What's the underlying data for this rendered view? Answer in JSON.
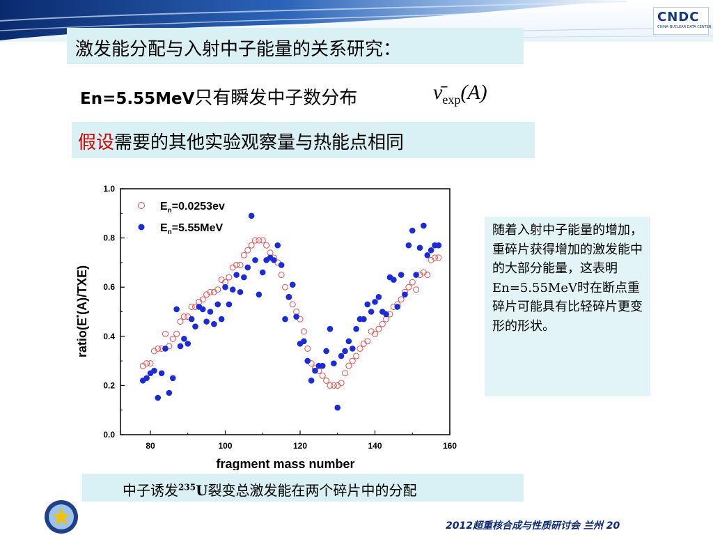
{
  "header": {
    "logo_text": "CNDC",
    "logo_sub": "CHINA NUCLEAR DATA CENTER",
    "title": "激发能分配与入射中子能量的关系研究："
  },
  "subtitle": {
    "en_part": "En=5.55MeV",
    "zh_part": "只有瞬发中子数分布",
    "formula_main": "ν̄",
    "formula_sub": "exp",
    "formula_arg": "(A)"
  },
  "assumption": {
    "highlight": "假设",
    "rest": "需要的其他实验观察量与热能点相同"
  },
  "note": {
    "text": "随着入射中子能量的增加，重碎片获得增加的激发能中的大部分能量，这表明En=5.55MeV时在断点重碎片可能具有比轻碎片更变形的形状。"
  },
  "caption": {
    "before": "中子诱发",
    "isotope_mass": "235",
    "isotope_symbol": "U",
    "after": "裂变总激发能在两个碎片中的分配"
  },
  "footer": {
    "text": "2012超重核合成与性质研讨会 兰州 20"
  },
  "chart_data": {
    "type": "scatter",
    "xlabel": "fragment mass number",
    "ylabel": "ratio(E*(A)/TXE)",
    "xlim": [
      72,
      160
    ],
    "ylim": [
      0.0,
      1.0
    ],
    "xticks": [
      "80",
      "100",
      "120",
      "140",
      "160"
    ],
    "yticks": [
      "0.0",
      "0.2",
      "0.4",
      "0.6",
      "0.8",
      "1.0"
    ],
    "legend_position": "top-left",
    "series": [
      {
        "name": "En=0.0253ev",
        "marker": "open-circle",
        "color": "#e05050",
        "points": [
          [
            78,
            0.28
          ],
          [
            79,
            0.29
          ],
          [
            80,
            0.29
          ],
          [
            81,
            0.34
          ],
          [
            82,
            0.35
          ],
          [
            83,
            0.35
          ],
          [
            84,
            0.41
          ],
          [
            85,
            0.36
          ],
          [
            86,
            0.39
          ],
          [
            87,
            0.41
          ],
          [
            88,
            0.46
          ],
          [
            89,
            0.48
          ],
          [
            90,
            0.48
          ],
          [
            91,
            0.52
          ],
          [
            92,
            0.52
          ],
          [
            93,
            0.54
          ],
          [
            94,
            0.55
          ],
          [
            95,
            0.57
          ],
          [
            96,
            0.58
          ],
          [
            97,
            0.58
          ],
          [
            98,
            0.59
          ],
          [
            99,
            0.63
          ],
          [
            100,
            0.62
          ],
          [
            101,
            0.64
          ],
          [
            102,
            0.68
          ],
          [
            103,
            0.69
          ],
          [
            104,
            0.69
          ],
          [
            105,
            0.73
          ],
          [
            106,
            0.75
          ],
          [
            107,
            0.77
          ],
          [
            108,
            0.79
          ],
          [
            109,
            0.79
          ],
          [
            110,
            0.79
          ],
          [
            111,
            0.77
          ],
          [
            112,
            0.74
          ],
          [
            113,
            0.72
          ],
          [
            114,
            0.7
          ],
          [
            115,
            0.65
          ],
          [
            116,
            0.6
          ],
          [
            117,
            0.56
          ],
          [
            118,
            0.53
          ],
          [
            119,
            0.5
          ],
          [
            120,
            0.47
          ],
          [
            121,
            0.42
          ],
          [
            122,
            0.35
          ],
          [
            123,
            0.29
          ],
          [
            124,
            0.27
          ],
          [
            125,
            0.26
          ],
          [
            126,
            0.24
          ],
          [
            127,
            0.22
          ],
          [
            128,
            0.2
          ],
          [
            129,
            0.2
          ],
          [
            130,
            0.2
          ],
          [
            131,
            0.21
          ],
          [
            132,
            0.25
          ],
          [
            133,
            0.28
          ],
          [
            134,
            0.3
          ],
          [
            135,
            0.32
          ],
          [
            136,
            0.35
          ],
          [
            137,
            0.37
          ],
          [
            138,
            0.38
          ],
          [
            139,
            0.42
          ],
          [
            140,
            0.41
          ],
          [
            141,
            0.43
          ],
          [
            142,
            0.45
          ],
          [
            143,
            0.47
          ],
          [
            144,
            0.49
          ],
          [
            145,
            0.52
          ],
          [
            146,
            0.53
          ],
          [
            147,
            0.55
          ],
          [
            148,
            0.58
          ],
          [
            149,
            0.6
          ],
          [
            150,
            0.62
          ],
          [
            151,
            0.59
          ],
          [
            152,
            0.65
          ],
          [
            153,
            0.66
          ],
          [
            154,
            0.65
          ],
          [
            155,
            0.71
          ],
          [
            156,
            0.72
          ],
          [
            157,
            0.72
          ]
        ]
      },
      {
        "name": "En=5.55MeV",
        "marker": "filled-circle",
        "color": "#1c2bd8",
        "points": [
          [
            78,
            0.22
          ],
          [
            79,
            0.23
          ],
          [
            80,
            0.25
          ],
          [
            81,
            0.26
          ],
          [
            82,
            0.15
          ],
          [
            83,
            0.25
          ],
          [
            84,
            0.35
          ],
          [
            85,
            0.17
          ],
          [
            86,
            0.23
          ],
          [
            87,
            0.51
          ],
          [
            88,
            0.36
          ],
          [
            89,
            0.39
          ],
          [
            90,
            0.37
          ],
          [
            91,
            0.47
          ],
          [
            92,
            0.44
          ],
          [
            93,
            0.52
          ],
          [
            94,
            0.51
          ],
          [
            95,
            0.46
          ],
          [
            96,
            0.5
          ],
          [
            97,
            0.45
          ],
          [
            98,
            0.53
          ],
          [
            99,
            0.47
          ],
          [
            100,
            0.6
          ],
          [
            101,
            0.53
          ],
          [
            102,
            0.59
          ],
          [
            103,
            0.65
          ],
          [
            104,
            0.58
          ],
          [
            105,
            0.64
          ],
          [
            106,
            0.68
          ],
          [
            107,
            0.89
          ],
          [
            108,
            0.71
          ],
          [
            109,
            0.57
          ],
          [
            110,
            0.66
          ],
          [
            111,
            0.71
          ],
          [
            112,
            0.72
          ],
          [
            113,
            0.71
          ],
          [
            114,
            0.77
          ],
          [
            115,
            0.69
          ],
          [
            116,
            0.47
          ],
          [
            117,
            0.56
          ],
          [
            118,
            0.61
          ],
          [
            119,
            0.48
          ],
          [
            120,
            0.37
          ],
          [
            121,
            0.38
          ],
          [
            122,
            0.3
          ],
          [
            123,
            0.22
          ],
          [
            124,
            0.26
          ],
          [
            125,
            0.28
          ],
          [
            126,
            0.28
          ],
          [
            127,
            0.34
          ],
          [
            128,
            0.43
          ],
          [
            129,
            0.29
          ],
          [
            130,
            0.11
          ],
          [
            131,
            0.32
          ],
          [
            132,
            0.34
          ],
          [
            133,
            0.38
          ],
          [
            134,
            0.35
          ],
          [
            135,
            0.43
          ],
          [
            136,
            0.47
          ],
          [
            137,
            0.47
          ],
          [
            138,
            0.53
          ],
          [
            139,
            0.5
          ],
          [
            140,
            0.54
          ],
          [
            141,
            0.56
          ],
          [
            142,
            0.5
          ],
          [
            143,
            0.49
          ],
          [
            144,
            0.64
          ],
          [
            145,
            0.63
          ],
          [
            146,
            0.52
          ],
          [
            147,
            0.65
          ],
          [
            148,
            0.57
          ],
          [
            149,
            0.77
          ],
          [
            150,
            0.83
          ],
          [
            151,
            0.65
          ],
          [
            152,
            0.76
          ],
          [
            153,
            0.85
          ],
          [
            154,
            0.73
          ],
          [
            155,
            0.75
          ],
          [
            156,
            0.77
          ],
          [
            157,
            0.77
          ]
        ]
      }
    ]
  }
}
